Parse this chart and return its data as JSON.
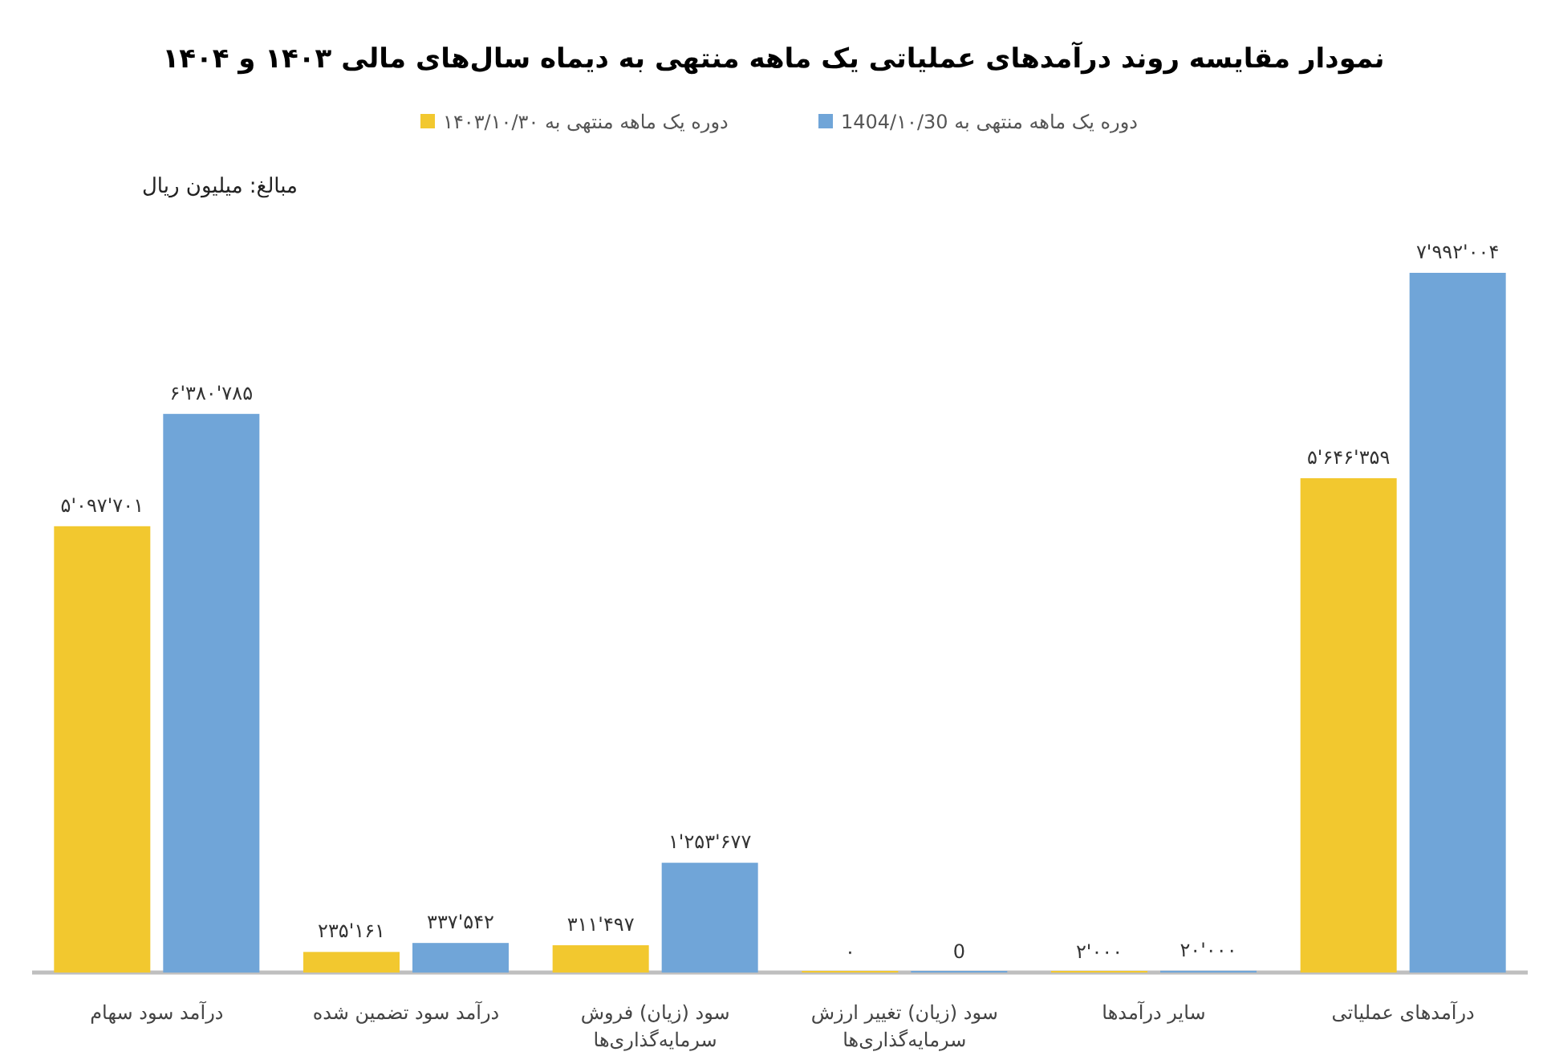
{
  "chart_data": {
    "type": "bar",
    "title": "نمودار مقایسه روند درآمدهای عملیاتی یک ماهه منتهی به دیماه سال‌های مالی ۱۴۰۳ و ۱۴۰۴",
    "annotations": [
      "مبالغ: میلیون ریال"
    ],
    "categories": [
      "درآمد سود سهام",
      "درآمد سود تضمین شده",
      "سود (زیان) فروش سرمایه‌گذاری‌ها",
      "سود (زیان) تغییر ارزش سرمایه‌گذاری‌ها",
      "سایر درآمدها",
      "درآمدهای عملیاتی"
    ],
    "series": [
      {
        "name": "دوره یک ماهه منتهی به ۱۴۰۳/۱۰/۳۰",
        "color": "#f2c82f",
        "values": [
          5097701,
          235161,
          311497,
          0,
          2000,
          5646359
        ],
        "value_labels": [
          "۵'۰۹۷'۷۰۱",
          "۲۳۵'۱۶۱",
          "۳۱۱'۴۹۷",
          "۰",
          "۲'۰۰۰",
          "۵'۶۴۶'۳۵۹"
        ]
      },
      {
        "name": "دوره یک ماهه منتهی به 1404/۱۰/30",
        "color": "#70a5d8",
        "values": [
          6380785,
          337542,
          1253677,
          0,
          20000,
          7992004
        ],
        "value_labels": [
          "۶'۳۸۰'۷۸۵",
          "۳۳۷'۵۴۲",
          "۱'۲۵۳'۶۷۷",
          "0",
          "۲۰'۰۰۰",
          "۷'۹۹۲'۰۰۴"
        ]
      }
    ],
    "legend": "top"
  }
}
